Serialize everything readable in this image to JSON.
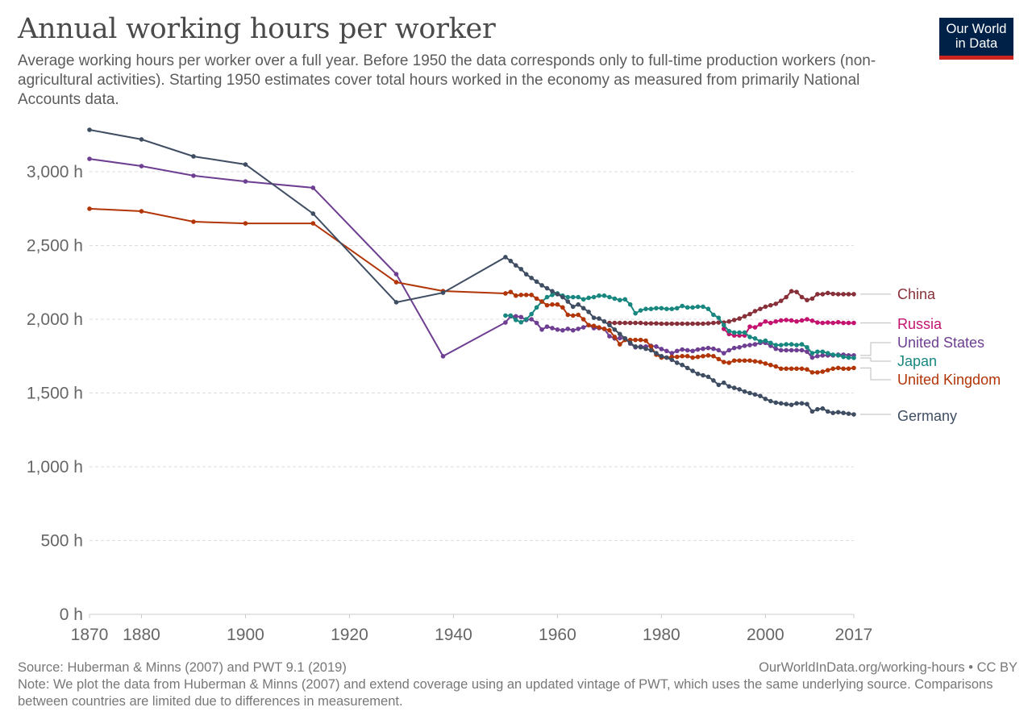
{
  "header": {
    "title": "Annual working hours per worker",
    "subtitle": "Average working hours per worker over a full year. Before 1950 the data corresponds only to full-time production workers (non-agricultural activities). Starting 1950 estimates cover total hours worked in the economy as measured from primarily National Accounts data.",
    "logo_line1": "Our World",
    "logo_line2": "in Data",
    "logo_colors": {
      "background": "#002147",
      "stripe": "#ce261e"
    }
  },
  "footer": {
    "source": "Source: Huberman & Minns (2007) and PWT 9.1 (2019)",
    "url": "OurWorldInData.org/working-hours • CC BY",
    "note": "Note: We plot the data from Huberman & Minns (2007) and extend coverage using an updated vintage of PWT, which uses the same underlying source. Comparisons between countries are limited due to differences in measurement."
  },
  "chart_data": {
    "type": "line",
    "title": "Annual working hours per worker",
    "xlabel": "",
    "ylabel": "",
    "xlim": [
      1870,
      2017
    ],
    "ylim": [
      0,
      3300
    ],
    "grid": true,
    "legend": "right (end-of-line labels)",
    "x_ticks": [
      1870,
      1880,
      1900,
      1920,
      1940,
      1960,
      1980,
      2000,
      2017
    ],
    "x_tick_labels": [
      "1870",
      "1880",
      "1900",
      "1920",
      "1940",
      "1960",
      "1980",
      "2000",
      "2017"
    ],
    "y_ticks": [
      0,
      500,
      1000,
      1500,
      2000,
      2500,
      3000
    ],
    "y_tick_labels": [
      "0 h",
      "500 h",
      "1,000 h",
      "1,500 h",
      "2,000 h",
      "2,500 h",
      "3,000 h"
    ],
    "series": [
      {
        "name": "China",
        "color": "#883039",
        "x": [
          1970,
          1971,
          1972,
          1973,
          1974,
          1975,
          1976,
          1977,
          1978,
          1979,
          1980,
          1981,
          1982,
          1983,
          1984,
          1985,
          1986,
          1987,
          1988,
          1989,
          1990,
          1991,
          1992,
          1993,
          1994,
          1995,
          1996,
          1997,
          1998,
          1999,
          2000,
          2001,
          2002,
          2003,
          2004,
          2005,
          2006,
          2007,
          2008,
          2009,
          2010,
          2011,
          2012,
          2013,
          2014,
          2015,
          2016,
          2017
        ],
        "values": [
          1975,
          1975,
          1975,
          1975,
          1975,
          1975,
          1975,
          1972,
          1972,
          1972,
          1970,
          1970,
          1970,
          1970,
          1970,
          1970,
          1970,
          1970,
          1970,
          1972,
          1975,
          1978,
          1978,
          1985,
          1995,
          2005,
          2020,
          2035,
          2055,
          2070,
          2085,
          2095,
          2105,
          2125,
          2150,
          2190,
          2185,
          2150,
          2130,
          2140,
          2170,
          2170,
          2178,
          2172,
          2170,
          2170,
          2170,
          2170
        ]
      },
      {
        "name": "Russia",
        "color": "#c4136f",
        "x": [
          1992,
          1993,
          1994,
          1995,
          1996,
          1997,
          1998,
          1999,
          2000,
          2001,
          2002,
          2003,
          2004,
          2005,
          2006,
          2007,
          2008,
          2009,
          2010,
          2011,
          2012,
          2013,
          2014,
          2015,
          2016,
          2017
        ],
        "values": [
          1935,
          1900,
          1890,
          1890,
          1890,
          1950,
          1945,
          1965,
          1985,
          1975,
          1985,
          1992,
          1995,
          1992,
          1985,
          1992,
          2000,
          1990,
          1978,
          1975,
          1978,
          1975,
          1980,
          1975,
          1975,
          1975
        ]
      },
      {
        "name": "United States",
        "color": "#6d3e91",
        "x": [
          1870,
          1880,
          1890,
          1900,
          1913,
          1929,
          1938,
          1950,
          1951,
          1952,
          1953,
          1954,
          1955,
          1956,
          1957,
          1958,
          1959,
          1960,
          1961,
          1962,
          1963,
          1964,
          1965,
          1966,
          1967,
          1968,
          1969,
          1970,
          1971,
          1972,
          1973,
          1974,
          1975,
          1976,
          1977,
          1978,
          1979,
          1980,
          1981,
          1982,
          1983,
          1984,
          1985,
          1986,
          1987,
          1988,
          1989,
          1990,
          1991,
          1992,
          1993,
          1994,
          1995,
          1996,
          1997,
          1998,
          1999,
          2000,
          2001,
          2002,
          2003,
          2004,
          2005,
          2006,
          2007,
          2008,
          2009,
          2010,
          2011,
          2012,
          2013,
          2014,
          2015,
          2016,
          2017
        ],
        "values": [
          3087,
          3038,
          2973,
          2934,
          2891,
          2306,
          1749,
          1978,
          2020,
          2020,
          2015,
          1995,
          2000,
          1975,
          1930,
          1950,
          1940,
          1930,
          1925,
          1935,
          1925,
          1935,
          1945,
          1960,
          1940,
          1940,
          1935,
          1885,
          1870,
          1872,
          1870,
          1835,
          1810,
          1815,
          1815,
          1820,
          1815,
          1798,
          1785,
          1770,
          1785,
          1795,
          1790,
          1785,
          1795,
          1800,
          1805,
          1800,
          1790,
          1770,
          1790,
          1805,
          1810,
          1820,
          1825,
          1830,
          1840,
          1840,
          1820,
          1800,
          1790,
          1790,
          1790,
          1790,
          1790,
          1780,
          1740,
          1750,
          1755,
          1755,
          1755,
          1760,
          1760,
          1755,
          1755
        ]
      },
      {
        "name": "Japan",
        "color": "#18877f",
        "x": [
          1950,
          1951,
          1952,
          1953,
          1954,
          1955,
          1956,
          1957,
          1958,
          1959,
          1960,
          1961,
          1962,
          1963,
          1964,
          1965,
          1966,
          1967,
          1968,
          1969,
          1970,
          1971,
          1972,
          1973,
          1974,
          1975,
          1976,
          1977,
          1978,
          1979,
          1980,
          1981,
          1982,
          1983,
          1984,
          1985,
          1986,
          1987,
          1988,
          1989,
          1990,
          1991,
          1992,
          1993,
          1994,
          1995,
          1996,
          1997,
          1998,
          1999,
          2000,
          2001,
          2002,
          2003,
          2004,
          2005,
          2006,
          2007,
          2008,
          2009,
          2010,
          2011,
          2012,
          2013,
          2014,
          2015,
          2016,
          2017
        ],
        "values": [
          2025,
          2025,
          1995,
          1980,
          2000,
          2035,
          2080,
          2120,
          2150,
          2165,
          2175,
          2160,
          2150,
          2150,
          2150,
          2135,
          2145,
          2150,
          2160,
          2160,
          2150,
          2140,
          2130,
          2135,
          2100,
          2040,
          2060,
          2070,
          2070,
          2075,
          2075,
          2070,
          2070,
          2075,
          2090,
          2080,
          2080,
          2085,
          2085,
          2070,
          2030,
          2010,
          1960,
          1920,
          1910,
          1910,
          1910,
          1880,
          1870,
          1850,
          1855,
          1840,
          1825,
          1825,
          1830,
          1830,
          1825,
          1830,
          1810,
          1770,
          1780,
          1780,
          1770,
          1760,
          1755,
          1745,
          1740,
          1738
        ]
      },
      {
        "name": "United Kingdom",
        "color": "#b13507",
        "x": [
          1870,
          1880,
          1890,
          1900,
          1913,
          1929,
          1938,
          1950,
          1951,
          1952,
          1953,
          1954,
          1955,
          1956,
          1957,
          1958,
          1959,
          1960,
          1961,
          1962,
          1963,
          1964,
          1965,
          1966,
          1967,
          1968,
          1969,
          1970,
          1971,
          1972,
          1973,
          1974,
          1975,
          1976,
          1977,
          1978,
          1979,
          1980,
          1981,
          1982,
          1983,
          1984,
          1985,
          1986,
          1987,
          1988,
          1989,
          1990,
          1991,
          1992,
          1993,
          1994,
          1995,
          1996,
          1997,
          1998,
          1999,
          2000,
          2001,
          2002,
          2003,
          2004,
          2005,
          2006,
          2007,
          2008,
          2009,
          2010,
          2011,
          2012,
          2013,
          2014,
          2015,
          2016,
          2017
        ],
        "values": [
          2749,
          2732,
          2661,
          2650,
          2650,
          2251,
          2191,
          2175,
          2185,
          2160,
          2165,
          2165,
          2165,
          2140,
          2120,
          2095,
          2100,
          2100,
          2080,
          2030,
          2025,
          2030,
          2000,
          1960,
          1955,
          1945,
          1935,
          1925,
          1880,
          1830,
          1860,
          1860,
          1860,
          1860,
          1855,
          1815,
          1760,
          1740,
          1740,
          1745,
          1745,
          1750,
          1750,
          1740,
          1745,
          1750,
          1755,
          1750,
          1730,
          1710,
          1705,
          1720,
          1720,
          1720,
          1720,
          1715,
          1710,
          1700,
          1690,
          1680,
          1665,
          1665,
          1665,
          1665,
          1665,
          1660,
          1640,
          1640,
          1645,
          1655,
          1665,
          1670,
          1665,
          1665,
          1670
        ]
      },
      {
        "name": "Germany",
        "color": "#3f4d63",
        "x": [
          1870,
          1880,
          1890,
          1900,
          1913,
          1929,
          1938,
          1950,
          1951,
          1952,
          1953,
          1954,
          1955,
          1956,
          1957,
          1958,
          1959,
          1960,
          1961,
          1962,
          1963,
          1964,
          1965,
          1966,
          1967,
          1968,
          1969,
          1970,
          1971,
          1972,
          1973,
          1974,
          1975,
          1976,
          1977,
          1978,
          1979,
          1980,
          1981,
          1982,
          1983,
          1984,
          1985,
          1986,
          1987,
          1988,
          1989,
          1990,
          1991,
          1992,
          1993,
          1994,
          1995,
          1996,
          1997,
          1998,
          1999,
          2000,
          2001,
          2002,
          2003,
          2004,
          2005,
          2006,
          2007,
          2008,
          2009,
          2010,
          2011,
          2012,
          2013,
          2014,
          2015,
          2016,
          2017
        ],
        "values": [
          3284,
          3219,
          3104,
          3049,
          2716,
          2115,
          2180,
          2421,
          2395,
          2365,
          2340,
          2305,
          2280,
          2255,
          2230,
          2210,
          2190,
          2170,
          2150,
          2120,
          2085,
          2100,
          2075,
          2050,
          2010,
          2005,
          1985,
          1960,
          1930,
          1900,
          1870,
          1840,
          1815,
          1810,
          1800,
          1790,
          1770,
          1750,
          1740,
          1725,
          1705,
          1690,
          1670,
          1650,
          1630,
          1620,
          1610,
          1585,
          1555,
          1570,
          1545,
          1535,
          1525,
          1510,
          1500,
          1490,
          1480,
          1460,
          1445,
          1435,
          1430,
          1425,
          1420,
          1430,
          1430,
          1425,
          1375,
          1390,
          1395,
          1375,
          1365,
          1370,
          1365,
          1360,
          1355
        ]
      }
    ],
    "labels": [
      {
        "name": "China",
        "text": "China"
      },
      {
        "name": "Russia",
        "text": "Russia"
      },
      {
        "name": "United States",
        "text": "United States"
      },
      {
        "name": "Japan",
        "text": "Japan"
      },
      {
        "name": "United Kingdom",
        "text": "United Kingdom"
      },
      {
        "name": "Germany",
        "text": "Germany"
      }
    ]
  }
}
